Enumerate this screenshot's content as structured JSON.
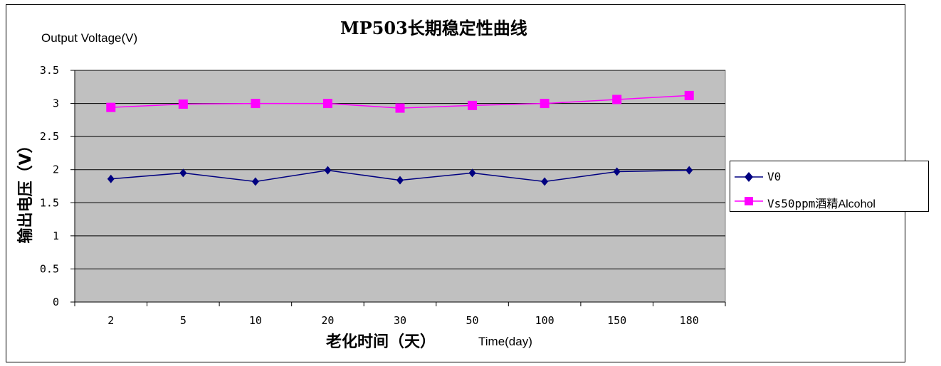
{
  "chart_data": {
    "type": "line",
    "title": "MP503长期稳定性曲线",
    "ylabel_en": "Output Voltage(V)",
    "ylabel_cn": "输出电压（V）",
    "xlabel_cn": "老化时间（天）",
    "xlabel_en": "Time(day)",
    "categories": [
      "2",
      "5",
      "10",
      "20",
      "30",
      "50",
      "100",
      "150",
      "180"
    ],
    "ylim": [
      0,
      3.5
    ],
    "yticks": [
      "0",
      "0.5",
      "1",
      "1.5",
      "2",
      "2.5",
      "3",
      "3.5"
    ],
    "ytick_values": [
      0,
      0.5,
      1,
      1.5,
      2,
      2.5,
      3,
      3.5
    ],
    "grid": true,
    "plot_background": "#c0c0c0",
    "legend_position": "right",
    "series": [
      {
        "name": "V0",
        "color": "#000080",
        "marker": "diamond",
        "values": [
          1.86,
          1.95,
          1.82,
          1.99,
          1.84,
          1.95,
          1.82,
          1.97,
          1.99
        ]
      },
      {
        "name": "Vs50ppm酒精",
        "name_suffix": "Alcohol",
        "color": "#ff00ff",
        "marker": "square",
        "values": [
          2.94,
          2.99,
          3.0,
          3.0,
          2.93,
          2.97,
          3.0,
          3.06,
          3.12
        ]
      }
    ]
  }
}
